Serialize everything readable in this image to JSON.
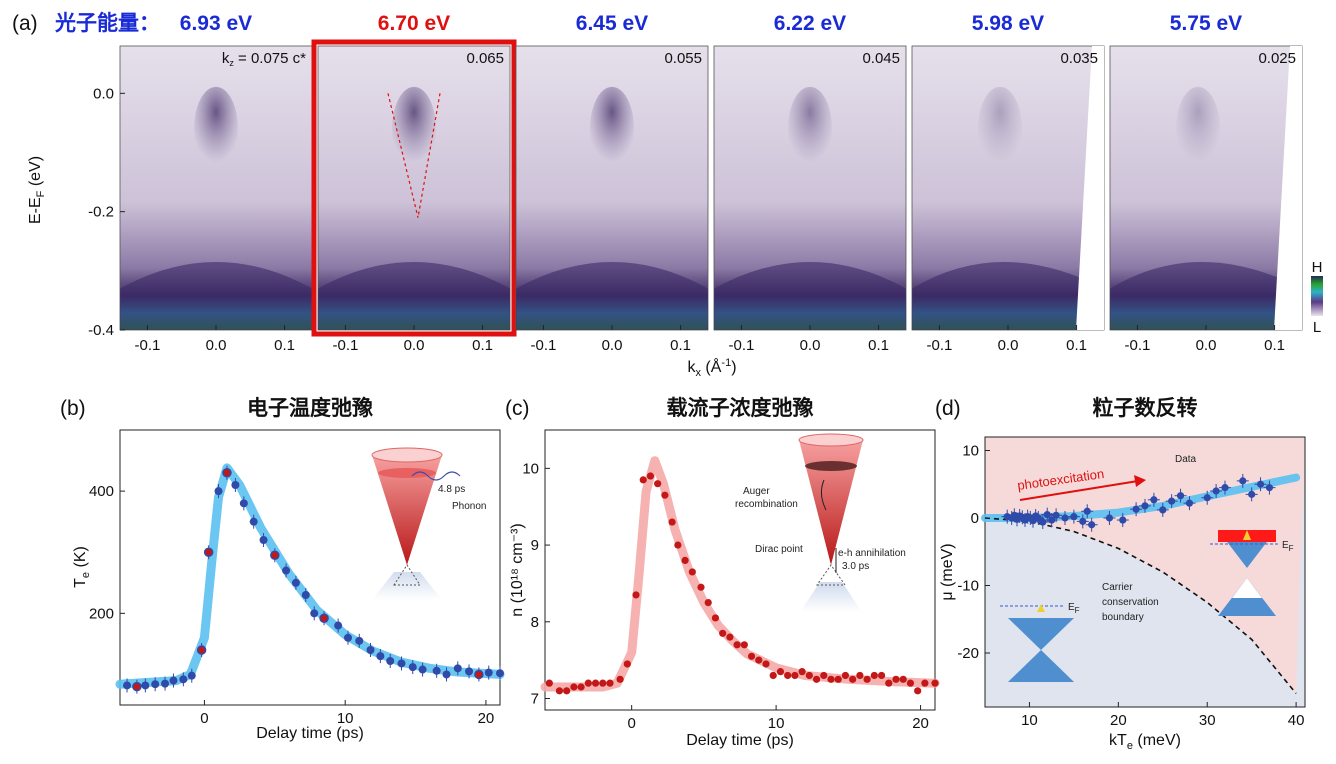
{
  "panel_a": {
    "label": "(a)",
    "photon_label": "光子能量：",
    "ylabel": "E-E_F (eV)",
    "xlabel": "k_x (Å⁻¹)",
    "yticks": [
      "0.0",
      "-0.2",
      "-0.4"
    ],
    "xticks": [
      "-0.1",
      "0.0",
      "0.1"
    ],
    "colorbar_high": "H",
    "colorbar_low": "L",
    "kz_prefix": "k_z = ",
    "kz_unit": " c*",
    "highlighted_index": 1,
    "panels": [
      {
        "energy": "6.93 eV",
        "kz": "0.075"
      },
      {
        "energy": "6.70 eV",
        "kz": "0.065"
      },
      {
        "energy": "6.45 eV",
        "kz": "0.055"
      },
      {
        "energy": "6.22 eV",
        "kz": "0.045"
      },
      {
        "energy": "5.98 eV",
        "kz": "0.035"
      },
      {
        "energy": "5.75 eV",
        "kz": "0.025"
      }
    ]
  },
  "panel_b": {
    "label": "(b)",
    "title": "电子温度弛豫",
    "ylabel": "T_e (K)",
    "xlabel": "Delay time (ps)",
    "inset_time": "4.8 ps",
    "inset_phonon": "Phonon"
  },
  "panel_c": {
    "label": "(c)",
    "title": "载流子浓度弛豫",
    "ylabel": "n (10¹⁸ cm⁻³)",
    "xlabel": "Delay time (ps)",
    "inset_auger": "Auger recombination",
    "inset_dirac": "Dirac point",
    "inset_eh": "e-h annihilation",
    "inset_eh_time": "3.0 ps"
  },
  "panel_d": {
    "label": "(d)",
    "title": "粒子数反转",
    "ylabel": "μ (meV)",
    "xlabel": "kT_e (meV)",
    "data_label": "Data",
    "arrow_label": "photoexcitation",
    "boundary_label": [
      "Carrier",
      "conservation",
      "boundary"
    ],
    "ef": "E_F"
  },
  "colors": {
    "blue_header": "#1a2bd6",
    "red_header": "#e01010",
    "fit_blue": "#5bc0f0",
    "fit_pink": "#f5a9a9",
    "data_blue": "#2f4aa8",
    "data_red": "#c41818"
  },
  "chart_data": [
    {
      "type": "heatmap",
      "panel": "a",
      "xlabel": "k_x (Å⁻¹)",
      "ylabel": "E-E_F (eV)",
      "xlim": [
        -0.14,
        0.14
      ],
      "ylim": [
        -0.4,
        0.08
      ],
      "series": [
        {
          "photon_energy_eV": 6.93,
          "kz": 0.075
        },
        {
          "photon_energy_eV": 6.7,
          "kz": 0.065
        },
        {
          "photon_energy_eV": 6.45,
          "kz": 0.055
        },
        {
          "photon_energy_eV": 6.22,
          "kz": 0.045
        },
        {
          "photon_energy_eV": 5.98,
          "kz": 0.035
        },
        {
          "photon_energy_eV": 5.75,
          "kz": 0.025
        }
      ]
    },
    {
      "type": "scatter",
      "panel": "b",
      "title": "电子温度弛豫",
      "xlabel": "Delay time (ps)",
      "ylabel": "T_e (K)",
      "xlim": [
        -6,
        21
      ],
      "ylim": [
        50,
        500
      ],
      "xticks": [
        0,
        10,
        20
      ],
      "yticks": [
        200,
        400
      ],
      "points": [
        [
          -5.5,
          82
        ],
        [
          -4.8,
          80
        ],
        [
          -4.2,
          82
        ],
        [
          -3.5,
          84
        ],
        [
          -2.8,
          85
        ],
        [
          -2.2,
          90
        ],
        [
          -1.5,
          92
        ],
        [
          -0.9,
          98
        ],
        [
          -0.2,
          140
        ],
        [
          0.3,
          300
        ],
        [
          1.0,
          400
        ],
        [
          1.6,
          430
        ],
        [
          2.2,
          410
        ],
        [
          2.8,
          380
        ],
        [
          3.5,
          350
        ],
        [
          4.2,
          320
        ],
        [
          5.0,
          295
        ],
        [
          5.8,
          270
        ],
        [
          6.5,
          250
        ],
        [
          7.2,
          230
        ],
        [
          7.8,
          200
        ],
        [
          8.5,
          192
        ],
        [
          9.5,
          180
        ],
        [
          10.2,
          160
        ],
        [
          11.0,
          155
        ],
        [
          11.8,
          140
        ],
        [
          12.5,
          130
        ],
        [
          13.2,
          122
        ],
        [
          14.0,
          118
        ],
        [
          14.8,
          112
        ],
        [
          15.5,
          108
        ],
        [
          16.5,
          106
        ],
        [
          17.2,
          100
        ],
        [
          18.0,
          110
        ],
        [
          18.8,
          105
        ],
        [
          19.5,
          100
        ],
        [
          20.2,
          103
        ],
        [
          21.0,
          102
        ]
      ],
      "highlighted_x": [
        -4.8,
        -0.2,
        0.3,
        1.6,
        5.0,
        8.5,
        19.5
      ],
      "fit": [
        [
          -6,
          84
        ],
        [
          -2,
          90
        ],
        [
          -1,
          100
        ],
        [
          0,
          160
        ],
        [
          0.5,
          280
        ],
        [
          1,
          390
        ],
        [
          1.6,
          438
        ],
        [
          2.5,
          410
        ],
        [
          4,
          340
        ],
        [
          6,
          265
        ],
        [
          8,
          205
        ],
        [
          10,
          165
        ],
        [
          12,
          138
        ],
        [
          14,
          120
        ],
        [
          16,
          110
        ],
        [
          18,
          104
        ],
        [
          21,
          100
        ]
      ]
    },
    {
      "type": "scatter",
      "panel": "c",
      "title": "载流子浓度弛豫",
      "xlabel": "Delay time (ps)",
      "ylabel": "n (10¹⁸ cm⁻³)",
      "xlim": [
        -6,
        21
      ],
      "ylim": [
        6.85,
        10.5
      ],
      "xticks": [
        0,
        10,
        20
      ],
      "yticks": [
        7,
        8,
        9,
        10
      ],
      "points": [
        [
          -5.7,
          7.2
        ],
        [
          -5.0,
          7.1
        ],
        [
          -4.5,
          7.1
        ],
        [
          -4.0,
          7.15
        ],
        [
          -3.5,
          7.15
        ],
        [
          -3.0,
          7.2
        ],
        [
          -2.5,
          7.2
        ],
        [
          -2.0,
          7.2
        ],
        [
          -1.5,
          7.2
        ],
        [
          -0.8,
          7.25
        ],
        [
          -0.3,
          7.45
        ],
        [
          0.3,
          8.35
        ],
        [
          0.8,
          9.85
        ],
        [
          1.3,
          9.9
        ],
        [
          1.8,
          9.8
        ],
        [
          2.3,
          9.65
        ],
        [
          2.8,
          9.3
        ],
        [
          3.2,
          9.0
        ],
        [
          3.7,
          8.8
        ],
        [
          4.2,
          8.65
        ],
        [
          4.8,
          8.45
        ],
        [
          5.3,
          8.25
        ],
        [
          5.8,
          8.05
        ],
        [
          6.3,
          7.85
        ],
        [
          6.8,
          7.8
        ],
        [
          7.3,
          7.7
        ],
        [
          7.8,
          7.7
        ],
        [
          8.3,
          7.55
        ],
        [
          8.8,
          7.5
        ],
        [
          9.3,
          7.45
        ],
        [
          9.8,
          7.3
        ],
        [
          10.3,
          7.35
        ],
        [
          10.8,
          7.3
        ],
        [
          11.3,
          7.3
        ],
        [
          11.8,
          7.35
        ],
        [
          12.3,
          7.3
        ],
        [
          12.8,
          7.25
        ],
        [
          13.3,
          7.3
        ],
        [
          13.8,
          7.25
        ],
        [
          14.3,
          7.25
        ],
        [
          14.8,
          7.3
        ],
        [
          15.3,
          7.25
        ],
        [
          15.8,
          7.3
        ],
        [
          16.3,
          7.25
        ],
        [
          16.8,
          7.3
        ],
        [
          17.3,
          7.3
        ],
        [
          17.8,
          7.2
        ],
        [
          18.3,
          7.25
        ],
        [
          18.8,
          7.25
        ],
        [
          19.3,
          7.2
        ],
        [
          19.8,
          7.1
        ],
        [
          20.3,
          7.2
        ],
        [
          21.0,
          7.2
        ]
      ],
      "fit": [
        [
          -6,
          7.15
        ],
        [
          -2,
          7.15
        ],
        [
          -1,
          7.2
        ],
        [
          0,
          7.6
        ],
        [
          0.5,
          8.6
        ],
        [
          1.0,
          9.7
        ],
        [
          1.6,
          10.1
        ],
        [
          2.2,
          9.8
        ],
        [
          3,
          9.2
        ],
        [
          4,
          8.65
        ],
        [
          5,
          8.25
        ],
        [
          6,
          7.95
        ],
        [
          7,
          7.75
        ],
        [
          8,
          7.58
        ],
        [
          10,
          7.4
        ],
        [
          12,
          7.3
        ],
        [
          15,
          7.25
        ],
        [
          18,
          7.22
        ],
        [
          21,
          7.2
        ]
      ]
    },
    {
      "type": "scatter",
      "panel": "d",
      "title": "粒子数反转",
      "xlabel": "kT_e (meV)",
      "ylabel": "μ (meV)",
      "xlim": [
        5,
        41
      ],
      "ylim": [
        -28,
        12
      ],
      "xticks": [
        10,
        20,
        30,
        40
      ],
      "yticks": [
        -20,
        -10,
        0,
        10
      ],
      "points": [
        [
          7.5,
          0.2
        ],
        [
          8,
          0
        ],
        [
          8.3,
          0.4
        ],
        [
          8.6,
          -0.2
        ],
        [
          8.9,
          0.3
        ],
        [
          9.2,
          0.1
        ],
        [
          9.5,
          -0.3
        ],
        [
          9.8,
          0.2
        ],
        [
          10.1,
          0
        ],
        [
          10.4,
          -0.4
        ],
        [
          10.7,
          0.3
        ],
        [
          11,
          0
        ],
        [
          11.5,
          -0.6
        ],
        [
          12,
          0.5
        ],
        [
          12.5,
          -0.3
        ],
        [
          13,
          0.4
        ],
        [
          14,
          0
        ],
        [
          15,
          0.2
        ],
        [
          16,
          -0.5
        ],
        [
          16.5,
          1
        ],
        [
          17,
          -1
        ],
        [
          19,
          0
        ],
        [
          20.5,
          -0.3
        ],
        [
          22,
          1.3
        ],
        [
          23,
          1.8
        ],
        [
          24,
          2.7
        ],
        [
          25,
          1.2
        ],
        [
          26,
          2.5
        ],
        [
          27,
          3.3
        ],
        [
          28,
          2.2
        ],
        [
          30,
          3.0
        ],
        [
          31,
          4
        ],
        [
          32,
          4.5
        ],
        [
          34,
          5.5
        ],
        [
          35,
          3.5
        ],
        [
          36,
          5
        ],
        [
          37,
          4.5
        ]
      ],
      "fit": [
        [
          5,
          0
        ],
        [
          10,
          0
        ],
        [
          15,
          0.3
        ],
        [
          20,
          0.8
        ],
        [
          25,
          1.8
        ],
        [
          30,
          3.2
        ],
        [
          35,
          4.6
        ],
        [
          40,
          6
        ]
      ],
      "boundary": [
        [
          5,
          0
        ],
        [
          10,
          -0.5
        ],
        [
          15,
          -2
        ],
        [
          20,
          -4.5
        ],
        [
          25,
          -8
        ],
        [
          30,
          -12.5
        ],
        [
          35,
          -18
        ],
        [
          40,
          -26
        ]
      ]
    }
  ]
}
